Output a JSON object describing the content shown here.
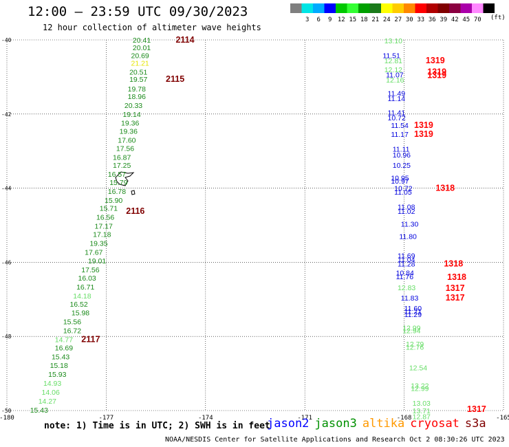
{
  "header": {
    "title": "12:00 – 23:59 UTC 09/30/2023",
    "subtitle": "12 hour collection of altimeter wave heights"
  },
  "colorbar": {
    "units": "(ft)",
    "bins": [
      {
        "label": "",
        "color": "#7f7f7f"
      },
      {
        "label": "3",
        "color": "#00e5e5"
      },
      {
        "label": "6",
        "color": "#00aaff"
      },
      {
        "label": "9",
        "color": "#0000ff"
      },
      {
        "label": "12",
        "color": "#00c800"
      },
      {
        "label": "15",
        "color": "#33ff33"
      },
      {
        "label": "18",
        "color": "#00a000"
      },
      {
        "label": "21",
        "color": "#1a7a1a"
      },
      {
        "label": "24",
        "color": "#ffff00"
      },
      {
        "label": "27",
        "color": "#ffcc00"
      },
      {
        "label": "30",
        "color": "#ff8800"
      },
      {
        "label": "33",
        "color": "#ff0000"
      },
      {
        "label": "36",
        "color": "#b00000"
      },
      {
        "label": "39",
        "color": "#800000"
      },
      {
        "label": "42",
        "color": "#8a0040"
      },
      {
        "label": "45",
        "color": "#aa00aa"
      },
      {
        "label": "70",
        "color": "#ff88ff"
      },
      {
        "label": "",
        "color": "#000000"
      }
    ]
  },
  "chart_data": {
    "type": "scatter",
    "xlim": [
      -180,
      -165
    ],
    "ylim": [
      -50,
      -40
    ],
    "x_ticks": [
      "-180",
      "-177",
      "-174",
      "-171",
      "-168",
      "-165"
    ],
    "y_ticks": [
      "-40",
      "-42",
      "-44",
      "-46",
      "-48",
      "-50"
    ],
    "grid": true,
    "satellite_colors": {
      "jason2": "#0000ff",
      "jason3": "#009000",
      "altika": "#ff9900",
      "cryosat": "#ff0000",
      "s3a": "#800000"
    },
    "track_west": [
      {
        "lon": -176.2,
        "lat": -40.0,
        "swh": "20.41",
        "c": "#1a8a1a"
      },
      {
        "lon": -176.2,
        "lat": -40.2,
        "swh": "20.01",
        "c": "#1a8a1a"
      },
      {
        "lon": -176.25,
        "lat": -40.42,
        "swh": "20.69",
        "c": "#1a8a1a"
      },
      {
        "lon": -176.25,
        "lat": -40.62,
        "swh": "21.21",
        "c": "#e5e500"
      },
      {
        "lon": -176.3,
        "lat": -40.86,
        "swh": "20.51",
        "c": "#1a8a1a"
      },
      {
        "lon": -176.3,
        "lat": -41.06,
        "swh": "19.57",
        "c": "#1a8a1a"
      },
      {
        "lon": -176.35,
        "lat": -41.32,
        "swh": "19.78",
        "c": "#1a8a1a"
      },
      {
        "lon": -176.35,
        "lat": -41.52,
        "swh": "18.96",
        "c": "#1a8a1a"
      },
      {
        "lon": -176.45,
        "lat": -41.76,
        "swh": "20.33",
        "c": "#1a8a1a"
      },
      {
        "lon": -176.5,
        "lat": -42.0,
        "swh": "19.14",
        "c": "#1a8a1a"
      },
      {
        "lon": -176.55,
        "lat": -42.24,
        "swh": "19.36",
        "c": "#1a8a1a"
      },
      {
        "lon": -176.6,
        "lat": -42.46,
        "swh": "19.36",
        "c": "#1a8a1a"
      },
      {
        "lon": -176.65,
        "lat": -42.7,
        "swh": "17.60",
        "c": "#1a8a1a"
      },
      {
        "lon": -176.7,
        "lat": -42.92,
        "swh": "17.56",
        "c": "#1a8a1a"
      },
      {
        "lon": -176.8,
        "lat": -43.16,
        "swh": "16.87",
        "c": "#1a8a1a"
      },
      {
        "lon": -176.8,
        "lat": -43.38,
        "swh": "17.25",
        "c": "#1a8a1a"
      },
      {
        "lon": -176.95,
        "lat": -43.62,
        "swh": "16.57",
        "c": "#1a8a1a"
      },
      {
        "lon": -176.9,
        "lat": -43.84,
        "swh": "15.79",
        "c": "#1a8a1a"
      },
      {
        "lon": -176.95,
        "lat": -44.08,
        "swh": "16.78",
        "c": "#1a8a1a"
      },
      {
        "lon": -177.05,
        "lat": -44.32,
        "swh": "15.90",
        "c": "#1a8a1a"
      },
      {
        "lon": -177.2,
        "lat": -44.54,
        "swh": "15.71",
        "c": "#1a8a1a"
      },
      {
        "lon": -177.3,
        "lat": -44.78,
        "swh": "16.56",
        "c": "#1a8a1a"
      },
      {
        "lon": -177.35,
        "lat": -45.02,
        "swh": "17.17",
        "c": "#1a8a1a"
      },
      {
        "lon": -177.4,
        "lat": -45.24,
        "swh": "17.18",
        "c": "#1a8a1a"
      },
      {
        "lon": -177.5,
        "lat": -45.48,
        "swh": "19.35",
        "c": "#1a8a1a"
      },
      {
        "lon": -177.65,
        "lat": -45.72,
        "swh": "17.67",
        "c": "#1a8a1a"
      },
      {
        "lon": -177.55,
        "lat": -45.96,
        "swh": "19.01",
        "c": "#1a8a1a"
      },
      {
        "lon": -177.75,
        "lat": -46.2,
        "swh": "17.56",
        "c": "#1a8a1a"
      },
      {
        "lon": -177.85,
        "lat": -46.42,
        "swh": "16.03",
        "c": "#1a8a1a"
      },
      {
        "lon": -177.9,
        "lat": -46.66,
        "swh": "16.71",
        "c": "#1a8a1a"
      },
      {
        "lon": -178.0,
        "lat": -46.9,
        "swh": "14.18",
        "c": "#66dd66"
      },
      {
        "lon": -178.1,
        "lat": -47.12,
        "swh": "16.52",
        "c": "#1a8a1a"
      },
      {
        "lon": -178.05,
        "lat": -47.36,
        "swh": "15.98",
        "c": "#1a8a1a"
      },
      {
        "lon": -178.3,
        "lat": -47.6,
        "swh": "15.56",
        "c": "#1a8a1a"
      },
      {
        "lon": -178.3,
        "lat": -47.84,
        "swh": "16.72",
        "c": "#1a8a1a"
      },
      {
        "lon": -178.55,
        "lat": -48.08,
        "swh": "14.77",
        "c": "#66dd66"
      },
      {
        "lon": -178.55,
        "lat": -48.3,
        "swh": "16.69",
        "c": "#1a8a1a"
      },
      {
        "lon": -178.65,
        "lat": -48.54,
        "swh": "15.43",
        "c": "#1a8a1a"
      },
      {
        "lon": -178.7,
        "lat": -48.78,
        "swh": "15.18",
        "c": "#1a8a1a"
      },
      {
        "lon": -178.75,
        "lat": -49.02,
        "swh": "15.93",
        "c": "#1a8a1a"
      },
      {
        "lon": -178.9,
        "lat": -49.26,
        "swh": "14.93",
        "c": "#66dd66"
      },
      {
        "lon": -178.95,
        "lat": -49.5,
        "swh": "14.06",
        "c": "#66dd66"
      },
      {
        "lon": -179.05,
        "lat": -49.74,
        "swh": "14.27",
        "c": "#66dd66"
      },
      {
        "lon": -179.3,
        "lat": -49.98,
        "swh": "15.43",
        "c": "#1a8a1a"
      }
    ],
    "track_east": [
      {
        "lon": -168.6,
        "lat": -40.02,
        "swh": "13.10",
        "c": "#66dd66"
      },
      {
        "lon": -168.65,
        "lat": -40.42,
        "swh": "11.51",
        "c": "#0000dd"
      },
      {
        "lon": -168.6,
        "lat": -40.56,
        "swh": "12.81",
        "c": "#66dd66"
      },
      {
        "lon": -168.6,
        "lat": -40.8,
        "swh": "12.12",
        "c": "#66dd66"
      },
      {
        "lon": -168.55,
        "lat": -40.94,
        "swh": "11.07",
        "c": "#0000dd"
      },
      {
        "lon": -168.55,
        "lat": -41.08,
        "swh": "12.16",
        "c": "#66dd66"
      },
      {
        "lon": -168.5,
        "lat": -41.44,
        "swh": "11.49",
        "c": "#0000dd"
      },
      {
        "lon": -168.5,
        "lat": -41.58,
        "swh": "11.14",
        "c": "#0000dd"
      },
      {
        "lon": -168.5,
        "lat": -41.96,
        "swh": "11.41",
        "c": "#0000dd"
      },
      {
        "lon": -168.5,
        "lat": -42.1,
        "swh": "10.72",
        "c": "#0000dd"
      },
      {
        "lon": -168.4,
        "lat": -42.3,
        "swh": "11.54",
        "c": "#0000dd"
      },
      {
        "lon": -168.4,
        "lat": -42.54,
        "swh": "11.17",
        "c": "#0000dd"
      },
      {
        "lon": -168.35,
        "lat": -42.94,
        "swh": "11.11",
        "c": "#0000dd"
      },
      {
        "lon": -168.35,
        "lat": -43.1,
        "swh": "10.96",
        "c": "#0000dd"
      },
      {
        "lon": -168.35,
        "lat": -43.38,
        "swh": "10.25",
        "c": "#0000dd"
      },
      {
        "lon": -168.4,
        "lat": -43.72,
        "swh": "10.95",
        "c": "#0000dd"
      },
      {
        "lon": -168.4,
        "lat": -43.8,
        "swh": "10.97",
        "c": "#0000dd"
      },
      {
        "lon": -168.3,
        "lat": -44.0,
        "swh": "10.72",
        "c": "#0000dd"
      },
      {
        "lon": -168.3,
        "lat": -44.1,
        "swh": "11.05",
        "c": "#0000dd"
      },
      {
        "lon": -168.2,
        "lat": -44.5,
        "swh": "11.08",
        "c": "#0000dd"
      },
      {
        "lon": -168.2,
        "lat": -44.62,
        "swh": "11.02",
        "c": "#0000dd"
      },
      {
        "lon": -168.1,
        "lat": -44.96,
        "swh": "11.30",
        "c": "#0000dd"
      },
      {
        "lon": -168.15,
        "lat": -45.3,
        "swh": "11.80",
        "c": "#0000dd"
      },
      {
        "lon": -168.2,
        "lat": -45.82,
        "swh": "11.69",
        "c": "#0000dd"
      },
      {
        "lon": -168.2,
        "lat": -45.92,
        "swh": "11.04",
        "c": "#0000dd"
      },
      {
        "lon": -168.2,
        "lat": -46.04,
        "swh": "11.28",
        "c": "#0000dd"
      },
      {
        "lon": -168.25,
        "lat": -46.28,
        "swh": "10.84",
        "c": "#0000dd"
      },
      {
        "lon": -168.25,
        "lat": -46.38,
        "swh": "11.76",
        "c": "#0000dd"
      },
      {
        "lon": -168.2,
        "lat": -46.68,
        "swh": "12.83",
        "c": "#66dd66"
      },
      {
        "lon": -168.1,
        "lat": -46.96,
        "swh": "11.83",
        "c": "#0000dd"
      },
      {
        "lon": -168.0,
        "lat": -47.24,
        "swh": "11.60",
        "c": "#0000dd"
      },
      {
        "lon": -168.0,
        "lat": -47.32,
        "swh": "11.21",
        "c": "#0000dd"
      },
      {
        "lon": -168.0,
        "lat": -47.4,
        "swh": "11.29",
        "c": "#0000dd"
      },
      {
        "lon": -168.05,
        "lat": -47.76,
        "swh": "12.99",
        "c": "#66dd66"
      },
      {
        "lon": -168.05,
        "lat": -47.84,
        "swh": "12.94",
        "c": "#66dd66"
      },
      {
        "lon": -167.95,
        "lat": -48.2,
        "swh": "12.79",
        "c": "#66dd66"
      },
      {
        "lon": -167.95,
        "lat": -48.28,
        "swh": "12.76",
        "c": "#66dd66"
      },
      {
        "lon": -167.85,
        "lat": -48.84,
        "swh": "12.54",
        "c": "#66dd66"
      },
      {
        "lon": -167.8,
        "lat": -49.32,
        "swh": "13.22",
        "c": "#66dd66"
      },
      {
        "lon": -167.8,
        "lat": -49.4,
        "swh": "12.99",
        "c": "#66dd66"
      },
      {
        "lon": -167.75,
        "lat": -49.8,
        "swh": "13.03",
        "c": "#66dd66"
      },
      {
        "lon": -167.75,
        "lat": -50.0,
        "swh": "13.71",
        "c": "#66dd66"
      },
      {
        "lon": -167.75,
        "lat": -50.16,
        "swh": "12.87",
        "c": "#66dd66"
      }
    ],
    "time_labels": [
      {
        "lon": -174.9,
        "lat": -40.0,
        "text": "2114",
        "c": "#800000"
      },
      {
        "lon": -175.2,
        "lat": -41.06,
        "text": "2115",
        "c": "#800000"
      },
      {
        "lon": -176.4,
        "lat": -44.62,
        "text": "2116",
        "c": "#800000"
      },
      {
        "lon": -177.75,
        "lat": -48.08,
        "text": "2117",
        "c": "#800000"
      },
      {
        "lon": -167.35,
        "lat": -40.56,
        "text": "1319",
        "c": "#ff0000"
      },
      {
        "lon": -167.3,
        "lat": -40.86,
        "text": "1319",
        "c": "#ff0000"
      },
      {
        "lon": -167.3,
        "lat": -40.96,
        "text": "1319",
        "c": "#ff0000"
      },
      {
        "lon": -167.7,
        "lat": -42.3,
        "text": "1319",
        "c": "#ff0000"
      },
      {
        "lon": -167.7,
        "lat": -42.54,
        "text": "1319",
        "c": "#ff0000"
      },
      {
        "lon": -167.05,
        "lat": -44.0,
        "text": "1318",
        "c": "#ff0000"
      },
      {
        "lon": -166.8,
        "lat": -46.04,
        "text": "1318",
        "c": "#ff0000"
      },
      {
        "lon": -166.7,
        "lat": -46.4,
        "text": "1318",
        "c": "#ff0000"
      },
      {
        "lon": -166.75,
        "lat": -46.7,
        "text": "1317",
        "c": "#ff0000"
      },
      {
        "lon": -166.75,
        "lat": -46.96,
        "text": "1317",
        "c": "#ff0000"
      },
      {
        "lon": -166.1,
        "lat": -49.96,
        "text": "1317",
        "c": "#ff0000"
      }
    ]
  },
  "footer": {
    "note": "note: 1) Time is in UTC; 2) SWH is in feet",
    "legend": [
      {
        "name": "jason2",
        "color": "#0000ff"
      },
      {
        "name": "jason3",
        "color": "#009000"
      },
      {
        "name": "altika",
        "color": "#ff9900"
      },
      {
        "name": "cryosat",
        "color": "#ff0000"
      },
      {
        "name": "s3a",
        "color": "#800000"
      }
    ],
    "credit": "NOAA/NESDIS Center for Satellite Applications and Research   Oct  2 08:30:26 UTC 2023"
  }
}
